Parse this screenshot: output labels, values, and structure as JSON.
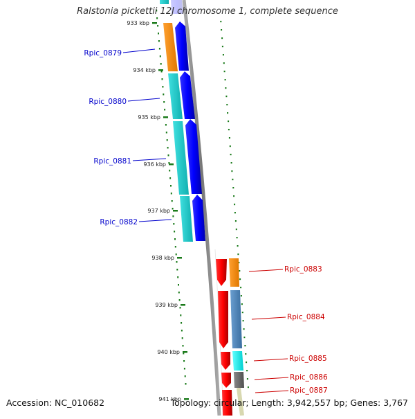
{
  "title": "Ralstonia pickettii 12J chromosome 1, complete sequence",
  "accession": "Accession: NC_010682",
  "summary": "Topology: circular; Length: 3,942,557 bp; Genes: 3,767",
  "kbp_ticks": [
    "933 kbp",
    "934 kbp",
    "935 kbp",
    "936 kbp",
    "937 kbp",
    "938 kbp",
    "939 kbp",
    "940 kbp",
    "941 kbp"
  ],
  "genes": [
    {
      "label": "Rpic_0879",
      "strand": "forward",
      "color": "#0000cc"
    },
    {
      "label": "Rpic_0880",
      "strand": "forward",
      "color": "#0000cc"
    },
    {
      "label": "Rpic_0881",
      "strand": "forward",
      "color": "#0000cc"
    },
    {
      "label": "Rpic_0882",
      "strand": "forward",
      "color": "#0000cc"
    },
    {
      "label": "Rpic_0883",
      "strand": "reverse",
      "color": "#cc0000"
    },
    {
      "label": "Rpic_0884",
      "strand": "reverse",
      "color": "#cc0000"
    },
    {
      "label": "Rpic_0885",
      "strand": "reverse",
      "color": "#cc0000"
    },
    {
      "label": "Rpic_0886",
      "strand": "reverse",
      "color": "#cc0000"
    },
    {
      "label": "Rpic_0887",
      "strand": "reverse",
      "color": "#cc0000"
    }
  ],
  "colors": {
    "forward_feature": "#0000ff",
    "reverse_feature": "#ff0000",
    "backbone": "#888888",
    "tick_marks": "#1a7a1a",
    "cog_orange": "#ff8c00",
    "cog_cyan": "#20cccc",
    "cog_steelblue": "#4682b4",
    "cog_aqua": "#00ffff",
    "cog_gray": "#666666"
  }
}
